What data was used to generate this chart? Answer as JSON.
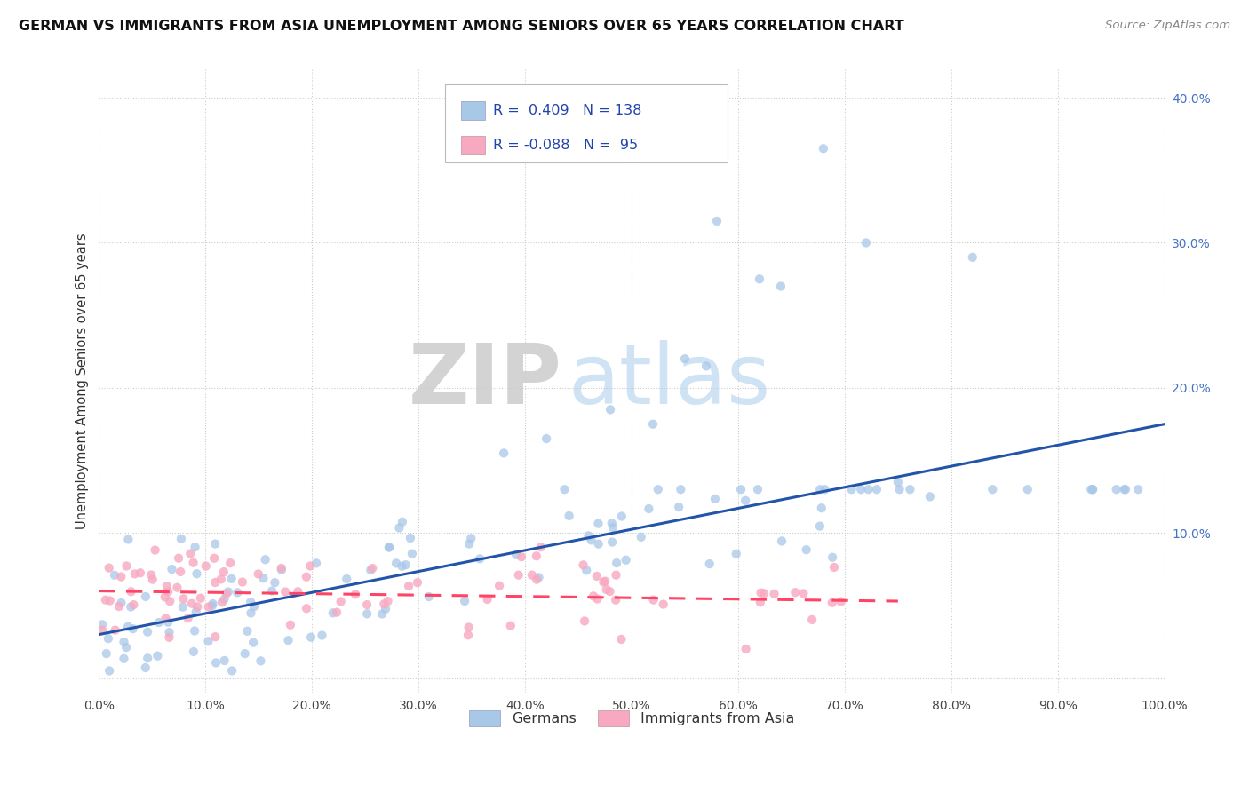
{
  "title": "GERMAN VS IMMIGRANTS FROM ASIA UNEMPLOYMENT AMONG SENIORS OVER 65 YEARS CORRELATION CHART",
  "source": "Source: ZipAtlas.com",
  "ylabel": "Unemployment Among Seniors over 65 years",
  "xlim": [
    0.0,
    1.0
  ],
  "ylim": [
    -0.01,
    0.42
  ],
  "xticks": [
    0.0,
    0.1,
    0.2,
    0.3,
    0.4,
    0.5,
    0.6,
    0.7,
    0.8,
    0.9,
    1.0
  ],
  "xtick_labels": [
    "0.0%",
    "10.0%",
    "20.0%",
    "30.0%",
    "40.0%",
    "50.0%",
    "60.0%",
    "70.0%",
    "80.0%",
    "90.0%",
    "100.0%"
  ],
  "yticks": [
    0.0,
    0.1,
    0.2,
    0.3,
    0.4
  ],
  "ytick_labels": [
    "",
    "10.0%",
    "20.0%",
    "30.0%",
    "40.0%"
  ],
  "series1_color": "#A8C8E8",
  "series2_color": "#F8A8C0",
  "line1_color": "#2255AA",
  "line2_color": "#FF4466",
  "R1": 0.409,
  "N1": 138,
  "R2": -0.088,
  "N2": 95,
  "watermark_zip": "ZIP",
  "watermark_atlas": "atlas",
  "legend_labels": [
    "Germans",
    "Immigrants from Asia"
  ],
  "background_color": "#FFFFFF",
  "grid_color": "#CCCCCC",
  "line1_x0": 0.0,
  "line1_y0": 0.03,
  "line1_x1": 1.0,
  "line1_y1": 0.175,
  "line2_x0": 0.0,
  "line2_y0": 0.06,
  "line2_x1": 0.75,
  "line2_y1": 0.053
}
